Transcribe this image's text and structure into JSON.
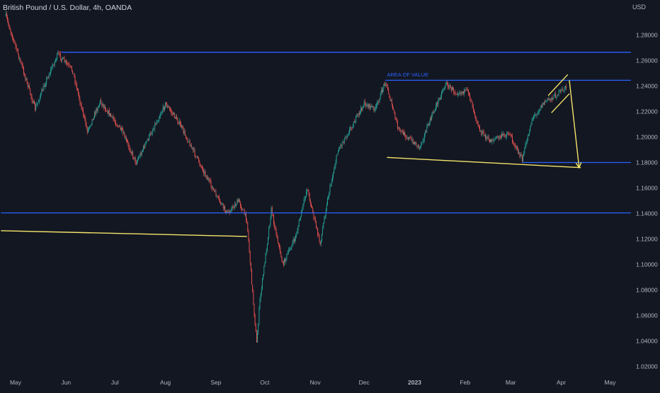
{
  "header": {
    "symbol_title": "British Pound / U.S. Dollar, 4h, OANDA",
    "currency": "USD"
  },
  "colors": {
    "background": "#131722",
    "up_candle": "#26a69a",
    "down_candle": "#ef5350",
    "horizontal_line": "#2962ff",
    "drawing": "#f5e46a",
    "axis_text": "#b2b5be",
    "annotation_text": "#2962ff"
  },
  "chart_data": {
    "type": "candlestick",
    "title": "British Pound / U.S. Dollar, 4h, OANDA",
    "ylabel": "USD",
    "ylim": [
      1.01,
      1.3
    ],
    "y_ticks": [
      1.02,
      1.04,
      1.06,
      1.08,
      1.1,
      1.12,
      1.14,
      1.16,
      1.18,
      1.2,
      1.22,
      1.24,
      1.26,
      1.28
    ],
    "y_tick_labels": [
      "1.02000",
      "1.04000",
      "1.06000",
      "1.08000",
      "1.10000",
      "1.12000",
      "1.14000",
      "1.16000",
      "1.18000",
      "1.20000",
      "1.22000",
      "1.24000",
      "1.26000",
      "1.28000"
    ],
    "x_ticks": [
      {
        "date": "2022-05-01",
        "label": "May"
      },
      {
        "date": "2022-06-01",
        "label": "Jun"
      },
      {
        "date": "2022-07-01",
        "label": "Jul"
      },
      {
        "date": "2022-08-01",
        "label": "Aug"
      },
      {
        "date": "2022-09-01",
        "label": "Sep"
      },
      {
        "date": "2022-10-01",
        "label": "Oct"
      },
      {
        "date": "2022-11-01",
        "label": "Nov"
      },
      {
        "date": "2022-12-01",
        "label": "Dec"
      },
      {
        "date": "2023-01-01",
        "label": "2023"
      },
      {
        "date": "2023-02-01",
        "label": "Feb"
      },
      {
        "date": "2023-03-01",
        "label": "Mar"
      },
      {
        "date": "2023-04-01",
        "label": "Apr"
      },
      {
        "date": "2023-05-01",
        "label": "May"
      }
    ],
    "price_path": [
      [
        "2022-04-25",
        1.295
      ],
      [
        "2022-05-05",
        1.255
      ],
      [
        "2022-05-13",
        1.222
      ],
      [
        "2022-05-20",
        1.245
      ],
      [
        "2022-05-27",
        1.265
      ],
      [
        "2022-06-05",
        1.252
      ],
      [
        "2022-06-14",
        1.205
      ],
      [
        "2022-06-22",
        1.228
      ],
      [
        "2022-07-05",
        1.205
      ],
      [
        "2022-07-14",
        1.18
      ],
      [
        "2022-07-25",
        1.208
      ],
      [
        "2022-08-01",
        1.226
      ],
      [
        "2022-08-09",
        1.212
      ],
      [
        "2022-08-23",
        1.177
      ],
      [
        "2022-09-02",
        1.152
      ],
      [
        "2022-09-08",
        1.14
      ],
      [
        "2022-09-15",
        1.15
      ],
      [
        "2022-09-20",
        1.135
      ],
      [
        "2022-09-23",
        1.086
      ],
      [
        "2022-09-26",
        1.038
      ],
      [
        "2022-09-28",
        1.072
      ],
      [
        "2022-10-05",
        1.143
      ],
      [
        "2022-10-12",
        1.1
      ],
      [
        "2022-10-20",
        1.122
      ],
      [
        "2022-10-27",
        1.16
      ],
      [
        "2022-11-04",
        1.116
      ],
      [
        "2022-11-08",
        1.148
      ],
      [
        "2022-11-15",
        1.19
      ],
      [
        "2022-11-25",
        1.212
      ],
      [
        "2022-12-01",
        1.226
      ],
      [
        "2022-12-08",
        1.222
      ],
      [
        "2022-12-14",
        1.244
      ],
      [
        "2022-12-22",
        1.206
      ],
      [
        "2023-01-04",
        1.192
      ],
      [
        "2023-01-12",
        1.218
      ],
      [
        "2023-01-20",
        1.242
      ],
      [
        "2023-01-26",
        1.235
      ],
      [
        "2023-02-03",
        1.236
      ],
      [
        "2023-02-10",
        1.205
      ],
      [
        "2023-02-16",
        1.197
      ],
      [
        "2023-02-28",
        1.203
      ],
      [
        "2023-03-08",
        1.182
      ],
      [
        "2023-03-14",
        1.214
      ],
      [
        "2023-03-22",
        1.228
      ],
      [
        "2023-03-28",
        1.232
      ],
      [
        "2023-04-04",
        1.239
      ]
    ],
    "horizontal_lines": [
      {
        "price": 1.2665,
        "start": "2022-05-29"
      },
      {
        "price": 1.2445,
        "start": "2022-12-14"
      },
      {
        "price": 1.18,
        "start": "2023-03-08"
      },
      {
        "price": 1.1405,
        "start": "2022-04-22"
      }
    ],
    "trend_lines": [
      {
        "from": [
          "2022-04-22",
          1.1265
        ],
        "to": [
          "2022-09-20",
          1.122
        ]
      },
      {
        "from": [
          "2022-12-15",
          1.184
        ],
        "to": [
          "2023-04-13",
          1.176
        ]
      }
    ],
    "channel_lines": [
      {
        "from": [
          "2023-03-24",
          1.2325
        ],
        "to": [
          "2023-04-05",
          1.249
        ]
      },
      {
        "from": [
          "2023-03-26",
          1.219
        ],
        "to": [
          "2023-04-06",
          1.234
        ]
      }
    ],
    "projection_arrow": {
      "from": [
        "2023-04-06",
        1.2445
      ],
      "to": [
        "2023-04-12",
        1.176
      ]
    },
    "annotations": [
      {
        "text": "AREA OF VALUE",
        "date": "2022-12-15",
        "price": 1.2475
      }
    ]
  }
}
